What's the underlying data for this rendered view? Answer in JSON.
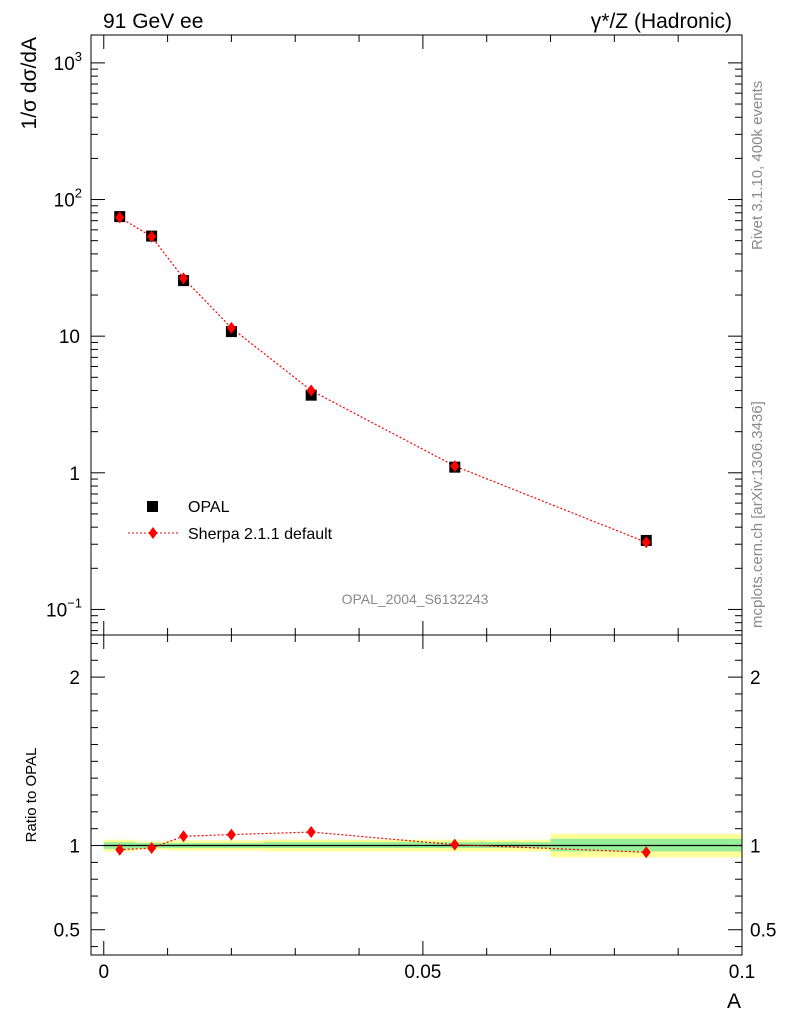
{
  "header": {
    "left_title": "91 GeV ee",
    "right_title": "γ*/Z (Hadronic)"
  },
  "side_text": {
    "rivet": "Rivet 3.1.10,  400k events",
    "source": "mcplots.cern.ch [arXiv:1306.3436]"
  },
  "analysis_id": "OPAL_2004_S6132243",
  "chart_data": [
    {
      "type": "scatter",
      "ylabel": "1/σ dσ/dA",
      "yscale": "log",
      "ylim": [
        0.065,
        1600
      ],
      "xlim": [
        -0.002,
        0.1
      ],
      "yticks": [
        {
          "value": 0.1,
          "label_base": "10",
          "label_exp": "−1"
        },
        {
          "value": 1,
          "label_base": "1",
          "label_exp": ""
        },
        {
          "value": 10,
          "label_base": "10",
          "label_exp": ""
        },
        {
          "value": 100,
          "label_base": "10",
          "label_exp": "2"
        },
        {
          "value": 1000,
          "label_base": "10",
          "label_exp": "3"
        }
      ],
      "legend": {
        "placement": "lower-left"
      },
      "series": [
        {
          "name": "OPAL",
          "color": "#000000",
          "marker": "square",
          "x": [
            0.0025,
            0.0075,
            0.0125,
            0.02,
            0.0325,
            0.055,
            0.085
          ],
          "y": [
            75,
            54,
            25.5,
            10.8,
            3.7,
            1.1,
            0.32
          ]
        },
        {
          "name": "Sherpa 2.1.1 default",
          "color": "#ff0000",
          "marker": "diamond",
          "line": "dotted",
          "x": [
            0.0025,
            0.0075,
            0.0125,
            0.02,
            0.0325,
            0.055,
            0.085
          ],
          "y": [
            74,
            53.5,
            26.5,
            11.5,
            4.0,
            1.12,
            0.31
          ]
        }
      ]
    },
    {
      "type": "scatter",
      "ylabel": "Ratio to OPAL",
      "xlabel": "A",
      "ylim": [
        0.35,
        2.25
      ],
      "xlim": [
        -0.002,
        0.1
      ],
      "yticks": [
        0.5,
        1,
        2
      ],
      "xticks": [
        {
          "value": 0,
          "label": "0"
        },
        {
          "value": 0.05,
          "label": "0.05"
        },
        {
          "value": 0.1,
          "label": "0.1"
        }
      ],
      "reference_line": 1,
      "bands": [
        {
          "x0": 0.0,
          "x1": 0.005,
          "yellow": [
            0.965,
            1.035
          ],
          "green": [
            0.98,
            1.02
          ]
        },
        {
          "x0": 0.005,
          "x1": 0.01,
          "yellow": [
            0.975,
            1.025
          ],
          "green": [
            0.985,
            1.015
          ]
        },
        {
          "x0": 0.01,
          "x1": 0.015,
          "yellow": [
            0.97,
            1.03
          ],
          "green": [
            0.985,
            1.015
          ]
        },
        {
          "x0": 0.015,
          "x1": 0.025,
          "yellow": [
            0.97,
            1.03
          ],
          "green": [
            0.985,
            1.015
          ]
        },
        {
          "x0": 0.025,
          "x1": 0.04,
          "yellow": [
            0.965,
            1.035
          ],
          "green": [
            0.985,
            1.02
          ]
        },
        {
          "x0": 0.04,
          "x1": 0.07,
          "yellow": [
            0.965,
            1.035
          ],
          "green": [
            0.985,
            1.02
          ]
        },
        {
          "x0": 0.07,
          "x1": 0.1,
          "yellow": [
            0.93,
            1.07
          ],
          "green": [
            0.965,
            1.04
          ]
        }
      ],
      "series": [
        {
          "name": "Sherpa 2.1.1 default",
          "color": "#ff0000",
          "marker": "diamond",
          "line": "dotted",
          "x": [
            0.0025,
            0.0075,
            0.0125,
            0.02,
            0.0325,
            0.055,
            0.085
          ],
          "y": [
            0.975,
            0.985,
            1.055,
            1.065,
            1.08,
            1.005,
            0.96
          ]
        }
      ]
    }
  ]
}
